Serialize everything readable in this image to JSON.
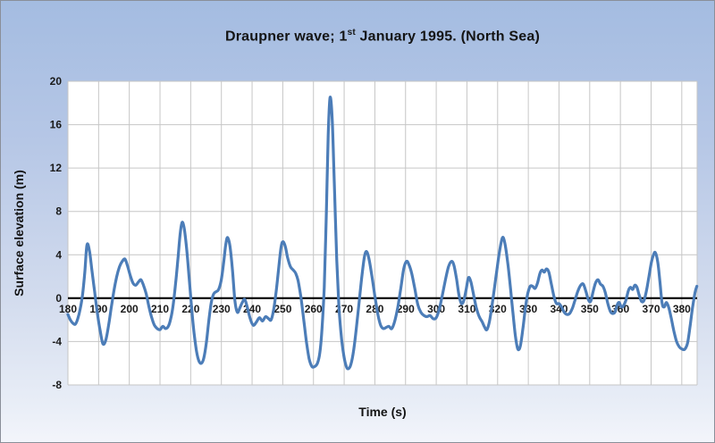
{
  "title": {
    "pre": "Draupner wave; 1",
    "sup": "st",
    "post": " January 1995. (North Sea)"
  },
  "chart_data": {
    "type": "line",
    "title": "Draupner wave; 1st January 1995. (North Sea)",
    "xlabel": "Time (s)",
    "ylabel": "Surface elevation (m)",
    "xlim": [
      180,
      385
    ],
    "ylim": [
      -8,
      20
    ],
    "x_ticks": [
      180,
      190,
      200,
      210,
      220,
      230,
      240,
      250,
      260,
      270,
      280,
      290,
      300,
      310,
      320,
      330,
      340,
      350,
      360,
      370,
      380
    ],
    "y_ticks": [
      20,
      16,
      12,
      8,
      4,
      0,
      -4,
      -8
    ],
    "grid": true,
    "legend": "none",
    "colors": {
      "line": "#4c7db8",
      "gridline": "#c6c6c6",
      "zero_axis": "#000000",
      "plot_background": "#ffffff",
      "chart_background_top": "#a4bce1",
      "chart_background_bottom": "#f3f5fb"
    },
    "max_value": 18.5,
    "series": [
      {
        "name": "Surface elevation (m)",
        "points": [
          [
            180.0,
            -1.5
          ],
          [
            180.8,
            -2.0
          ],
          [
            181.6,
            -2.3
          ],
          [
            182.4,
            -2.4
          ],
          [
            183.2,
            -1.9
          ],
          [
            184.0,
            -1.0
          ],
          [
            184.8,
            0.4
          ],
          [
            185.5,
            2.4
          ],
          [
            186.2,
            4.9
          ],
          [
            187.0,
            4.4
          ],
          [
            187.8,
            2.6
          ],
          [
            188.7,
            0.6
          ],
          [
            189.6,
            -1.4
          ],
          [
            190.5,
            -3.0
          ],
          [
            191.4,
            -4.2
          ],
          [
            192.3,
            -3.9
          ],
          [
            193.2,
            -2.6
          ],
          [
            194.1,
            -0.9
          ],
          [
            195.0,
            0.7
          ],
          [
            195.9,
            2.0
          ],
          [
            196.8,
            2.9
          ],
          [
            197.7,
            3.4
          ],
          [
            198.6,
            3.6
          ],
          [
            199.4,
            3.0
          ],
          [
            200.3,
            2.1
          ],
          [
            201.2,
            1.4
          ],
          [
            202.1,
            1.2
          ],
          [
            203.0,
            1.5
          ],
          [
            203.8,
            1.7
          ],
          [
            204.6,
            1.2
          ],
          [
            205.5,
            0.4
          ],
          [
            206.4,
            -0.8
          ],
          [
            207.3,
            -1.8
          ],
          [
            208.2,
            -2.5
          ],
          [
            209.1,
            -2.8
          ],
          [
            210.0,
            -2.9
          ],
          [
            210.9,
            -2.6
          ],
          [
            211.8,
            -2.8
          ],
          [
            212.7,
            -2.6
          ],
          [
            213.5,
            -1.9
          ],
          [
            214.3,
            -0.6
          ],
          [
            215.1,
            1.4
          ],
          [
            215.9,
            3.8
          ],
          [
            216.6,
            6.0
          ],
          [
            217.2,
            7.0
          ],
          [
            217.9,
            6.4
          ],
          [
            218.7,
            4.5
          ],
          [
            219.5,
            1.9
          ],
          [
            220.3,
            -0.9
          ],
          [
            221.1,
            -3.2
          ],
          [
            221.9,
            -4.9
          ],
          [
            222.7,
            -5.8
          ],
          [
            223.5,
            -6.0
          ],
          [
            224.3,
            -5.5
          ],
          [
            225.1,
            -4.1
          ],
          [
            225.9,
            -2.1
          ],
          [
            226.7,
            -0.4
          ],
          [
            227.5,
            0.4
          ],
          [
            228.3,
            0.6
          ],
          [
            229.1,
            0.8
          ],
          [
            229.9,
            1.6
          ],
          [
            230.7,
            3.2
          ],
          [
            231.4,
            4.9
          ],
          [
            232.0,
            5.6
          ],
          [
            232.8,
            4.8
          ],
          [
            233.6,
            2.6
          ],
          [
            234.4,
            -0.2
          ],
          [
            235.2,
            -1.3
          ],
          [
            236.0,
            -0.9
          ],
          [
            236.8,
            -0.4
          ],
          [
            237.6,
            -0.1
          ],
          [
            238.4,
            -0.8
          ],
          [
            239.4,
            -1.9
          ],
          [
            240.4,
            -2.5
          ],
          [
            241.4,
            -2.2
          ],
          [
            242.4,
            -1.8
          ],
          [
            243.4,
            -2.1
          ],
          [
            244.4,
            -1.7
          ],
          [
            245.4,
            -1.9
          ],
          [
            246.2,
            -2.0
          ],
          [
            247.0,
            -1.1
          ],
          [
            247.8,
            0.5
          ],
          [
            248.6,
            2.6
          ],
          [
            249.4,
            4.6
          ],
          [
            250.0,
            5.2
          ],
          [
            250.8,
            4.8
          ],
          [
            251.6,
            3.7
          ],
          [
            252.5,
            2.9
          ],
          [
            253.4,
            2.6
          ],
          [
            254.2,
            2.3
          ],
          [
            255.0,
            1.6
          ],
          [
            255.9,
            0.1
          ],
          [
            256.8,
            -1.9
          ],
          [
            257.7,
            -4.0
          ],
          [
            258.6,
            -5.6
          ],
          [
            259.5,
            -6.3
          ],
          [
            260.4,
            -6.3
          ],
          [
            261.3,
            -6.0
          ],
          [
            262.1,
            -5.0
          ],
          [
            262.8,
            -2.8
          ],
          [
            263.5,
            1.0
          ],
          [
            264.2,
            8.0
          ],
          [
            264.8,
            15.0
          ],
          [
            265.4,
            18.5
          ],
          [
            266.1,
            16.5
          ],
          [
            266.8,
            10.5
          ],
          [
            267.6,
            3.5
          ],
          [
            268.3,
            -0.8
          ],
          [
            269.1,
            -3.6
          ],
          [
            269.9,
            -5.3
          ],
          [
            270.7,
            -6.3
          ],
          [
            271.4,
            -6.5
          ],
          [
            272.2,
            -6.1
          ],
          [
            273.1,
            -4.8
          ],
          [
            274.0,
            -2.7
          ],
          [
            274.9,
            -0.3
          ],
          [
            275.8,
            2.1
          ],
          [
            276.6,
            3.8
          ],
          [
            277.3,
            4.3
          ],
          [
            278.1,
            3.6
          ],
          [
            279.0,
            2.1
          ],
          [
            280.0,
            0.2
          ],
          [
            281.0,
            -1.5
          ],
          [
            281.9,
            -2.5
          ],
          [
            282.8,
            -2.8
          ],
          [
            283.7,
            -2.7
          ],
          [
            284.6,
            -2.6
          ],
          [
            285.5,
            -2.8
          ],
          [
            286.5,
            -2.1
          ],
          [
            287.5,
            -0.8
          ],
          [
            288.5,
            1.0
          ],
          [
            289.4,
            2.7
          ],
          [
            290.3,
            3.4
          ],
          [
            291.1,
            3.1
          ],
          [
            292.0,
            2.3
          ],
          [
            293.0,
            0.9
          ],
          [
            294.0,
            -0.6
          ],
          [
            295.0,
            -1.3
          ],
          [
            296.0,
            -1.6
          ],
          [
            297.0,
            -1.7
          ],
          [
            298.0,
            -1.6
          ],
          [
            299.0,
            -1.9
          ],
          [
            300.0,
            -1.8
          ],
          [
            301.0,
            -1.0
          ],
          [
            302.0,
            0.3
          ],
          [
            303.0,
            1.7
          ],
          [
            304.0,
            2.9
          ],
          [
            305.0,
            3.4
          ],
          [
            305.8,
            3.0
          ],
          [
            306.6,
            1.8
          ],
          [
            307.4,
            0.3
          ],
          [
            308.2,
            -0.5
          ],
          [
            309.0,
            -0.2
          ],
          [
            309.8,
            0.9
          ],
          [
            310.5,
            1.9
          ],
          [
            311.3,
            1.5
          ],
          [
            312.1,
            0.4
          ],
          [
            313.0,
            -0.8
          ],
          [
            314.0,
            -1.7
          ],
          [
            315.0,
            -2.2
          ],
          [
            315.8,
            -2.7
          ],
          [
            316.5,
            -2.9
          ],
          [
            317.3,
            -2.2
          ],
          [
            318.1,
            -0.8
          ],
          [
            318.9,
            0.8
          ],
          [
            319.7,
            2.5
          ],
          [
            320.5,
            4.1
          ],
          [
            321.2,
            5.2
          ],
          [
            321.8,
            5.6
          ],
          [
            322.6,
            4.7
          ],
          [
            323.4,
            3.0
          ],
          [
            324.2,
            0.9
          ],
          [
            325.0,
            -1.4
          ],
          [
            325.8,
            -3.5
          ],
          [
            326.6,
            -4.7
          ],
          [
            327.4,
            -4.4
          ],
          [
            328.2,
            -2.9
          ],
          [
            329.0,
            -1.0
          ],
          [
            329.8,
            0.4
          ],
          [
            330.6,
            1.1
          ],
          [
            331.4,
            1.1
          ],
          [
            332.2,
            0.9
          ],
          [
            333.0,
            1.4
          ],
          [
            333.8,
            2.3
          ],
          [
            334.5,
            2.6
          ],
          [
            335.2,
            2.4
          ],
          [
            335.9,
            2.7
          ],
          [
            336.7,
            2.4
          ],
          [
            337.5,
            1.3
          ],
          [
            338.4,
            0.1
          ],
          [
            339.2,
            -0.5
          ],
          [
            340.0,
            -0.5
          ],
          [
            340.8,
            -0.8
          ],
          [
            341.7,
            -1.3
          ],
          [
            342.6,
            -1.5
          ],
          [
            343.5,
            -1.4
          ],
          [
            344.4,
            -0.9
          ],
          [
            345.3,
            -0.1
          ],
          [
            346.2,
            0.7
          ],
          [
            347.1,
            1.2
          ],
          [
            347.9,
            1.3
          ],
          [
            348.7,
            0.7
          ],
          [
            349.5,
            -0.1
          ],
          [
            350.3,
            -0.3
          ],
          [
            351.1,
            0.6
          ],
          [
            351.9,
            1.4
          ],
          [
            352.7,
            1.7
          ],
          [
            353.5,
            1.3
          ],
          [
            354.3,
            1.1
          ],
          [
            355.1,
            0.5
          ],
          [
            355.9,
            -0.5
          ],
          [
            356.7,
            -1.2
          ],
          [
            357.4,
            -1.4
          ],
          [
            358.2,
            -1.3
          ],
          [
            359.0,
            -0.6
          ],
          [
            359.6,
            -0.4
          ],
          [
            360.3,
            -0.8
          ],
          [
            361.0,
            -0.7
          ],
          [
            361.8,
            -0.2
          ],
          [
            362.6,
            0.7
          ],
          [
            363.3,
            1.0
          ],
          [
            364.0,
            0.8
          ],
          [
            364.7,
            1.2
          ],
          [
            365.4,
            1.0
          ],
          [
            366.1,
            0.3
          ],
          [
            366.9,
            -0.3
          ],
          [
            367.7,
            -0.2
          ],
          [
            368.5,
            0.7
          ],
          [
            369.3,
            2.0
          ],
          [
            370.1,
            3.3
          ],
          [
            370.8,
            4.0
          ],
          [
            371.4,
            4.2
          ],
          [
            372.2,
            3.3
          ],
          [
            372.9,
            1.5
          ],
          [
            373.6,
            -0.5
          ],
          [
            374.3,
            -0.8
          ],
          [
            375.0,
            -0.4
          ],
          [
            375.8,
            -0.9
          ],
          [
            376.6,
            -1.9
          ],
          [
            377.4,
            -3.0
          ],
          [
            378.3,
            -4.0
          ],
          [
            379.2,
            -4.5
          ],
          [
            380.1,
            -4.7
          ],
          [
            381.0,
            -4.7
          ],
          [
            381.9,
            -4.1
          ],
          [
            382.7,
            -2.6
          ],
          [
            383.5,
            -0.9
          ],
          [
            384.3,
            0.5
          ],
          [
            384.9,
            1.1
          ]
        ]
      }
    ]
  }
}
